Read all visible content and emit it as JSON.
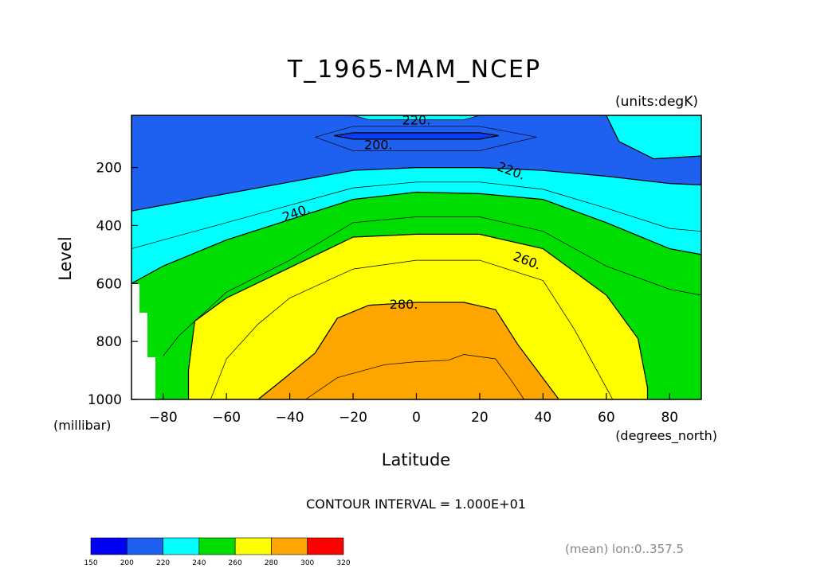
{
  "chart_data": {
    "type": "heatmap",
    "title": "T_1965-MAM_NCEP",
    "units_label": "(units:degK)",
    "xlabel": "Latitude",
    "ylabel": "Level",
    "x_units_label": "(degrees_north)",
    "y_units_label": "(millibar)",
    "xlim": [
      -90,
      90
    ],
    "ylim": [
      1000,
      20
    ],
    "x_ticks": [
      -80,
      -60,
      -40,
      -20,
      0,
      20,
      40,
      60,
      80
    ],
    "x_tick_labels": [
      "−80",
      "−60",
      "−40",
      "−20",
      "0",
      "20",
      "40",
      "60",
      "80"
    ],
    "y_ticks": [
      200,
      400,
      600,
      800,
      1000
    ],
    "y_tick_labels": [
      "200",
      "400",
      "600",
      "800",
      "1000"
    ],
    "contour_interval_text": "CONTOUR INTERVAL = 1.000E+01",
    "footer_note": "(mean) lon:0..357.5",
    "contour_labels": [
      {
        "text": "220.",
        "lat": 0,
        "level": 35
      },
      {
        "text": "200.",
        "lat": -12,
        "level": 120
      },
      {
        "text": "220.",
        "lat": 30,
        "level": 210
      },
      {
        "text": "240.",
        "lat": -38,
        "level": 355
      },
      {
        "text": "260.",
        "lat": 35,
        "level": 520
      },
      {
        "text": "280.",
        "lat": -4,
        "level": 670
      }
    ],
    "bands": [
      {
        "min": 200,
        "max": 210,
        "color": "#0a3cf5",
        "regions": [
          [
            [
              -26,
              90
            ],
            [
              -20,
              80
            ],
            [
              20,
              80
            ],
            [
              26,
              90
            ],
            [
              20,
              102
            ],
            [
              -20,
              102
            ]
          ]
        ]
      },
      {
        "min": 220,
        "max": 230,
        "color": "#00ffff",
        "regions": [
          [
            [
              -90,
              350
            ],
            [
              -80,
              330
            ],
            [
              -60,
              290
            ],
            [
              -40,
              250
            ],
            [
              -20,
              210
            ],
            [
              0,
              200
            ],
            [
              20,
              200
            ],
            [
              40,
              210
            ],
            [
              60,
              230
            ],
            [
              80,
              255
            ],
            [
              90,
              260
            ],
            [
              90,
              1000
            ],
            [
              -90,
              1000
            ]
          ],
          [
            [
              -20,
              20
            ],
            [
              20,
              20
            ],
            [
              15,
              35
            ],
            [
              -15,
              35
            ]
          ],
          [
            [
              60,
              20
            ],
            [
              90,
              20
            ],
            [
              90,
              160
            ],
            [
              75,
              170
            ],
            [
              64,
              110
            ]
          ]
        ]
      },
      {
        "min": 240,
        "max": 250,
        "color": "#00dd00",
        "regions": [
          [
            [
              -90,
              600
            ],
            [
              -80,
              540
            ],
            [
              -60,
              450
            ],
            [
              -40,
              380
            ],
            [
              -20,
              310
            ],
            [
              0,
              285
            ],
            [
              20,
              290
            ],
            [
              40,
              310
            ],
            [
              60,
              390
            ],
            [
              80,
              480
            ],
            [
              90,
              500
            ],
            [
              90,
              1000
            ],
            [
              -90,
              1000
            ]
          ]
        ]
      },
      {
        "min": 260,
        "max": 270,
        "color": "#ffff00",
        "regions": [
          [
            [
              -72,
              1000
            ],
            [
              -72,
              900
            ],
            [
              -70,
              730
            ],
            [
              -60,
              650
            ],
            [
              -40,
              545
            ],
            [
              -20,
              440
            ],
            [
              0,
              430
            ],
            [
              20,
              430
            ],
            [
              40,
              480
            ],
            [
              60,
              640
            ],
            [
              70,
              790
            ],
            [
              73,
              960
            ],
            [
              73,
              1000
            ]
          ]
        ]
      },
      {
        "min": 280,
        "max": 290,
        "color": "#ffa500",
        "regions": [
          [
            [
              -50,
              1000
            ],
            [
              -42,
              930
            ],
            [
              -32,
              840
            ],
            [
              -25,
              720
            ],
            [
              -15,
              675
            ],
            [
              0,
              665
            ],
            [
              15,
              665
            ],
            [
              25,
              690
            ],
            [
              32,
              810
            ],
            [
              45,
              1000
            ]
          ]
        ]
      }
    ],
    "contour_lines": [
      [
        [
          -26,
          90
        ],
        [
          -20,
          80
        ],
        [
          20,
          80
        ],
        [
          26,
          90
        ],
        [
          20,
          102
        ],
        [
          -20,
          102
        ],
        [
          -26,
          90
        ]
      ],
      [
        [
          -32,
          95
        ],
        [
          -20,
          58
        ],
        [
          20,
          58
        ],
        [
          38,
          95
        ],
        [
          20,
          142
        ],
        [
          -20,
          142
        ],
        [
          -32,
          95
        ]
      ],
      [
        [
          -90,
          350
        ],
        [
          -80,
          330
        ],
        [
          -60,
          290
        ],
        [
          -40,
          250
        ],
        [
          -20,
          210
        ],
        [
          0,
          200
        ],
        [
          20,
          200
        ],
        [
          40,
          210
        ],
        [
          60,
          230
        ],
        [
          80,
          255
        ],
        [
          90,
          260
        ]
      ],
      [
        [
          -20,
          20
        ],
        [
          -15,
          35
        ],
        [
          15,
          35
        ],
        [
          20,
          20
        ]
      ],
      [
        [
          60,
          20
        ],
        [
          64,
          110
        ],
        [
          75,
          170
        ],
        [
          90,
          160
        ]
      ],
      [
        [
          -90,
          480
        ],
        [
          -80,
          450
        ],
        [
          -60,
          390
        ],
        [
          -40,
          330
        ],
        [
          -20,
          270
        ],
        [
          0,
          250
        ],
        [
          20,
          250
        ],
        [
          40,
          275
        ],
        [
          60,
          340
        ],
        [
          80,
          410
        ],
        [
          90,
          420
        ]
      ],
      [
        [
          -90,
          600
        ],
        [
          -80,
          540
        ],
        [
          -60,
          450
        ],
        [
          -40,
          380
        ],
        [
          -20,
          310
        ],
        [
          0,
          285
        ],
        [
          20,
          290
        ],
        [
          40,
          310
        ],
        [
          60,
          390
        ],
        [
          80,
          480
        ],
        [
          90,
          500
        ]
      ],
      [
        [
          -80,
          850
        ],
        [
          -75,
          780
        ],
        [
          -60,
          630
        ],
        [
          -40,
          520
        ],
        [
          -20,
          390
        ],
        [
          0,
          370
        ],
        [
          20,
          370
        ],
        [
          40,
          420
        ],
        [
          60,
          540
        ],
        [
          80,
          620
        ],
        [
          90,
          640
        ]
      ],
      [
        [
          -72,
          1000
        ],
        [
          -72,
          900
        ],
        [
          -70,
          730
        ],
        [
          -60,
          650
        ],
        [
          -40,
          545
        ],
        [
          -20,
          440
        ],
        [
          0,
          430
        ],
        [
          20,
          430
        ],
        [
          40,
          480
        ],
        [
          60,
          640
        ],
        [
          70,
          790
        ],
        [
          73,
          960
        ],
        [
          73,
          1000
        ]
      ],
      [
        [
          -65,
          1000
        ],
        [
          -60,
          860
        ],
        [
          -50,
          740
        ],
        [
          -40,
          650
        ],
        [
          -20,
          550
        ],
        [
          0,
          520
        ],
        [
          20,
          520
        ],
        [
          40,
          590
        ],
        [
          50,
          760
        ],
        [
          62,
          1000
        ]
      ],
      [
        [
          -50,
          1000
        ],
        [
          -42,
          930
        ],
        [
          -32,
          840
        ],
        [
          -25,
          720
        ],
        [
          -15,
          675
        ],
        [
          0,
          665
        ],
        [
          15,
          665
        ],
        [
          25,
          690
        ],
        [
          32,
          810
        ],
        [
          45,
          1000
        ]
      ],
      [
        [
          -35,
          1000
        ],
        [
          -25,
          925
        ],
        [
          -10,
          880
        ],
        [
          0,
          870
        ],
        [
          10,
          865
        ],
        [
          15,
          845
        ],
        [
          25,
          860
        ],
        [
          30,
          935
        ],
        [
          34,
          1000
        ]
      ]
    ],
    "colorbar": {
      "boundaries": [
        "150",
        "200",
        "220",
        "240",
        "260",
        "280",
        "300",
        "320"
      ],
      "colors": [
        "#0000f5",
        "#1e60f0",
        "#00ffff",
        "#00dd00",
        "#ffff00",
        "#ffa500",
        "#ff0000"
      ]
    }
  }
}
